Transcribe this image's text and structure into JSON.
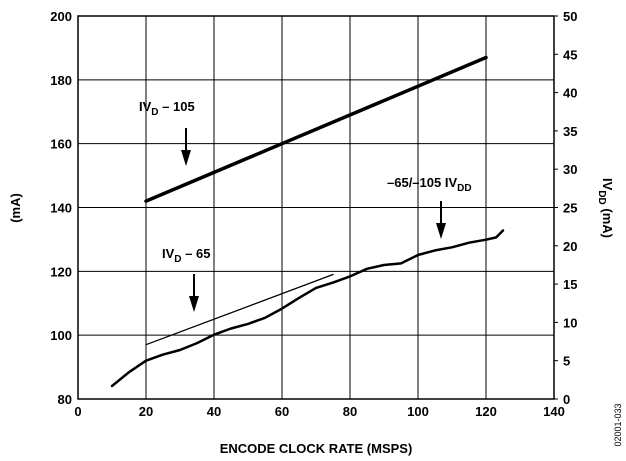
{
  "chart_data": {
    "type": "line",
    "xlabel": "ENCODE CLOCK RATE (MSPS)",
    "ylabel": "(mA)",
    "y2label_main": "IV",
    "y2label_sub": "DD",
    "y2label_tail": " (mA)",
    "xlim": [
      0,
      140
    ],
    "ylim": [
      80,
      200
    ],
    "y2lim": [
      0,
      50
    ],
    "grid": true,
    "x_ticks": [
      0,
      20,
      40,
      60,
      80,
      100,
      120,
      140
    ],
    "y_ticks": [
      80,
      100,
      120,
      140,
      160,
      180,
      200
    ],
    "y2_ticks": [
      0,
      5,
      10,
      15,
      20,
      25,
      30,
      35,
      40,
      45,
      50
    ],
    "series": [
      {
        "name": "IVD – 105",
        "axis": "left",
        "style": "thick",
        "x": [
          20,
          120
        ],
        "y": [
          142,
          187
        ]
      },
      {
        "name": "IVD – 65",
        "axis": "left",
        "style": "thin",
        "x": [
          20,
          75
        ],
        "y": [
          97,
          119
        ]
      },
      {
        "name": "–65/–105 IVDD",
        "axis": "right",
        "style": "medium",
        "x": [
          10,
          15,
          20,
          25,
          30,
          35,
          40,
          45,
          50,
          55,
          60,
          65,
          70,
          75,
          80,
          85,
          90,
          95,
          100,
          105,
          110,
          115,
          120,
          123,
          125
        ],
        "y": [
          1.7,
          3.5,
          5.0,
          5.8,
          6.4,
          7.3,
          8.4,
          9.2,
          9.8,
          10.6,
          11.8,
          13.2,
          14.5,
          15.2,
          16.0,
          17.0,
          17.5,
          17.7,
          18.8,
          19.4,
          19.8,
          20.4,
          20.8,
          21.1,
          22.0
        ]
      }
    ],
    "annotations": [
      {
        "main": "IV",
        "sub": "D",
        "tail": " – 105"
      },
      {
        "main": "IV",
        "sub": "D",
        "tail": " – 65"
      },
      {
        "main": "–65/–105 IV",
        "sub": "DD",
        "tail": ""
      }
    ]
  },
  "figure_id": "02001-033"
}
